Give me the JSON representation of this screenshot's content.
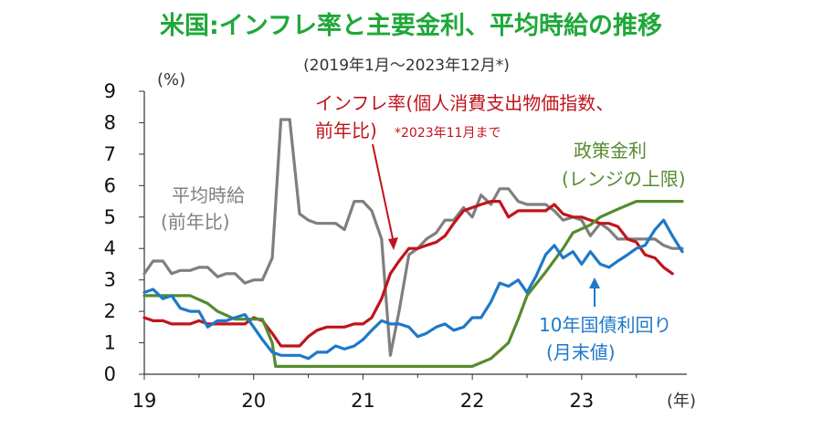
{
  "chart_data": {
    "type": "line",
    "title": "米国:インフレ率と主要金利、平均時給の推移",
    "subtitle": "(2019年1月〜2023年12月*)",
    "y_unit_label": "(%)",
    "x_unit_label": "(年)",
    "xlim": [
      2019.0,
      2023.92
    ],
    "ylim": [
      0,
      9
    ],
    "y_ticks": [
      "0",
      "1",
      "2",
      "3",
      "4",
      "5",
      "6",
      "7",
      "8",
      "9"
    ],
    "x_ticks": [
      {
        "value": 2019,
        "label": "19"
      },
      {
        "value": 2020,
        "label": "20"
      },
      {
        "value": 2021,
        "label": "21"
      },
      {
        "value": 2022,
        "label": "22"
      },
      {
        "value": 2023,
        "label": "23"
      }
    ],
    "series": [
      {
        "key": "wages",
        "color": "#7f7f7f",
        "values": [
          [
            2019.0,
            3.2
          ],
          [
            2019.08,
            3.6
          ],
          [
            2019.17,
            3.6
          ],
          [
            2019.25,
            3.2
          ],
          [
            2019.33,
            3.3
          ],
          [
            2019.42,
            3.3
          ],
          [
            2019.5,
            3.4
          ],
          [
            2019.58,
            3.4
          ],
          [
            2019.67,
            3.1
          ],
          [
            2019.75,
            3.2
          ],
          [
            2019.83,
            3.2
          ],
          [
            2019.92,
            2.9
          ],
          [
            2020.0,
            3.0
          ],
          [
            2020.08,
            3.0
          ],
          [
            2020.17,
            3.7
          ],
          [
            2020.25,
            8.1
          ],
          [
            2020.33,
            8.1
          ],
          [
            2020.42,
            5.1
          ],
          [
            2020.5,
            4.9
          ],
          [
            2020.58,
            4.8
          ],
          [
            2020.67,
            4.8
          ],
          [
            2020.75,
            4.8
          ],
          [
            2020.83,
            4.6
          ],
          [
            2020.92,
            5.5
          ],
          [
            2021.0,
            5.5
          ],
          [
            2021.08,
            5.2
          ],
          [
            2021.17,
            4.3
          ],
          [
            2021.25,
            0.6
          ],
          [
            2021.33,
            2.0
          ],
          [
            2021.42,
            3.8
          ],
          [
            2021.5,
            4.0
          ],
          [
            2021.58,
            4.3
          ],
          [
            2021.67,
            4.5
          ],
          [
            2021.75,
            4.9
          ],
          [
            2021.83,
            4.9
          ],
          [
            2021.92,
            5.3
          ],
          [
            2022.0,
            5.0
          ],
          [
            2022.08,
            5.7
          ],
          [
            2022.17,
            5.4
          ],
          [
            2022.25,
            5.9
          ],
          [
            2022.33,
            5.9
          ],
          [
            2022.42,
            5.5
          ],
          [
            2022.5,
            5.4
          ],
          [
            2022.58,
            5.4
          ],
          [
            2022.67,
            5.4
          ],
          [
            2022.75,
            5.2
          ],
          [
            2022.83,
            4.9
          ],
          [
            2022.92,
            5.0
          ],
          [
            2023.0,
            4.9
          ],
          [
            2023.08,
            4.4
          ],
          [
            2023.17,
            4.8
          ],
          [
            2023.25,
            4.6
          ],
          [
            2023.33,
            4.3
          ],
          [
            2023.42,
            4.3
          ],
          [
            2023.5,
            4.3
          ],
          [
            2023.58,
            4.3
          ],
          [
            2023.67,
            4.3
          ],
          [
            2023.75,
            4.1
          ],
          [
            2023.83,
            4.0
          ],
          [
            2023.92,
            4.0
          ]
        ]
      },
      {
        "key": "inflation",
        "color": "#c0141c",
        "values": [
          [
            2019.0,
            1.8
          ],
          [
            2019.08,
            1.7
          ],
          [
            2019.17,
            1.7
          ],
          [
            2019.25,
            1.6
          ],
          [
            2019.33,
            1.6
          ],
          [
            2019.42,
            1.6
          ],
          [
            2019.5,
            1.7
          ],
          [
            2019.58,
            1.6
          ],
          [
            2019.67,
            1.6
          ],
          [
            2019.75,
            1.6
          ],
          [
            2019.83,
            1.6
          ],
          [
            2019.92,
            1.6
          ],
          [
            2020.0,
            1.8
          ],
          [
            2020.08,
            1.7
          ],
          [
            2020.17,
            1.3
          ],
          [
            2020.25,
            0.9
          ],
          [
            2020.33,
            0.9
          ],
          [
            2020.42,
            0.9
          ],
          [
            2020.5,
            1.2
          ],
          [
            2020.58,
            1.4
          ],
          [
            2020.67,
            1.5
          ],
          [
            2020.75,
            1.5
          ],
          [
            2020.83,
            1.5
          ],
          [
            2020.92,
            1.6
          ],
          [
            2021.0,
            1.6
          ],
          [
            2021.08,
            1.8
          ],
          [
            2021.17,
            2.4
          ],
          [
            2021.25,
            3.2
          ],
          [
            2021.33,
            3.6
          ],
          [
            2021.42,
            4.0
          ],
          [
            2021.5,
            4.0
          ],
          [
            2021.58,
            4.1
          ],
          [
            2021.67,
            4.2
          ],
          [
            2021.75,
            4.4
          ],
          [
            2021.83,
            4.8
          ],
          [
            2021.92,
            5.2
          ],
          [
            2022.0,
            5.3
          ],
          [
            2022.08,
            5.4
          ],
          [
            2022.17,
            5.5
          ],
          [
            2022.25,
            5.5
          ],
          [
            2022.33,
            5.0
          ],
          [
            2022.42,
            5.2
          ],
          [
            2022.5,
            5.2
          ],
          [
            2022.58,
            5.2
          ],
          [
            2022.67,
            5.2
          ],
          [
            2022.75,
            5.4
          ],
          [
            2022.83,
            5.1
          ],
          [
            2022.92,
            5.0
          ],
          [
            2023.0,
            5.0
          ],
          [
            2023.08,
            4.9
          ],
          [
            2023.17,
            4.8
          ],
          [
            2023.25,
            4.8
          ],
          [
            2023.33,
            4.7
          ],
          [
            2023.42,
            4.3
          ],
          [
            2023.5,
            4.2
          ],
          [
            2023.58,
            3.8
          ],
          [
            2023.67,
            3.7
          ],
          [
            2023.75,
            3.4
          ],
          [
            2023.83,
            3.2
          ]
        ]
      },
      {
        "key": "policy_rate",
        "color": "#558b2f",
        "values": [
          [
            2019.0,
            2.5
          ],
          [
            2019.42,
            2.5
          ],
          [
            2019.58,
            2.25
          ],
          [
            2019.67,
            2.0
          ],
          [
            2019.83,
            1.75
          ],
          [
            2020.08,
            1.75
          ],
          [
            2020.17,
            1.0
          ],
          [
            2020.2,
            0.25
          ],
          [
            2022.0,
            0.25
          ],
          [
            2022.17,
            0.5
          ],
          [
            2022.33,
            1.0
          ],
          [
            2022.42,
            1.75
          ],
          [
            2022.5,
            2.5
          ],
          [
            2022.67,
            3.25
          ],
          [
            2022.83,
            4.0
          ],
          [
            2022.92,
            4.5
          ],
          [
            2023.08,
            4.75
          ],
          [
            2023.17,
            5.0
          ],
          [
            2023.33,
            5.25
          ],
          [
            2023.5,
            5.5
          ],
          [
            2023.92,
            5.5
          ]
        ]
      },
      {
        "key": "treasury10y",
        "color": "#1f78c8",
        "values": [
          [
            2019.0,
            2.6
          ],
          [
            2019.08,
            2.7
          ],
          [
            2019.17,
            2.4
          ],
          [
            2019.25,
            2.5
          ],
          [
            2019.33,
            2.1
          ],
          [
            2019.42,
            2.0
          ],
          [
            2019.5,
            2.0
          ],
          [
            2019.58,
            1.5
          ],
          [
            2019.67,
            1.7
          ],
          [
            2019.75,
            1.7
          ],
          [
            2019.83,
            1.8
          ],
          [
            2019.92,
            1.9
          ],
          [
            2020.0,
            1.5
          ],
          [
            2020.08,
            1.1
          ],
          [
            2020.17,
            0.7
          ],
          [
            2020.25,
            0.6
          ],
          [
            2020.33,
            0.6
          ],
          [
            2020.42,
            0.6
          ],
          [
            2020.5,
            0.5
          ],
          [
            2020.58,
            0.7
          ],
          [
            2020.67,
            0.7
          ],
          [
            2020.75,
            0.9
          ],
          [
            2020.83,
            0.8
          ],
          [
            2020.92,
            0.9
          ],
          [
            2021.0,
            1.1
          ],
          [
            2021.08,
            1.4
          ],
          [
            2021.17,
            1.7
          ],
          [
            2021.25,
            1.6
          ],
          [
            2021.33,
            1.6
          ],
          [
            2021.42,
            1.5
          ],
          [
            2021.5,
            1.2
          ],
          [
            2021.58,
            1.3
          ],
          [
            2021.67,
            1.5
          ],
          [
            2021.75,
            1.6
          ],
          [
            2021.83,
            1.4
          ],
          [
            2021.92,
            1.5
          ],
          [
            2022.0,
            1.8
          ],
          [
            2022.08,
            1.8
          ],
          [
            2022.17,
            2.3
          ],
          [
            2022.25,
            2.9
          ],
          [
            2022.33,
            2.8
          ],
          [
            2022.42,
            3.0
          ],
          [
            2022.5,
            2.6
          ],
          [
            2022.58,
            3.1
          ],
          [
            2022.67,
            3.8
          ],
          [
            2022.75,
            4.1
          ],
          [
            2022.83,
            3.7
          ],
          [
            2022.92,
            3.9
          ],
          [
            2023.0,
            3.5
          ],
          [
            2023.08,
            3.9
          ],
          [
            2023.17,
            3.5
          ],
          [
            2023.25,
            3.4
          ],
          [
            2023.33,
            3.6
          ],
          [
            2023.42,
            3.8
          ],
          [
            2023.5,
            4.0
          ],
          [
            2023.58,
            4.1
          ],
          [
            2023.67,
            4.6
          ],
          [
            2023.75,
            4.9
          ],
          [
            2023.83,
            4.4
          ],
          [
            2023.92,
            3.9
          ]
        ]
      }
    ],
    "annotations": {
      "wages_label_1": "平均時給",
      "wages_label_2": "(前年比)",
      "inflation_label_1": "インフレ率(個人消費支出物価指数、",
      "inflation_label_2": "前年比)",
      "inflation_note": "*2023年11月まで",
      "policy_label_1": "政策金利",
      "policy_label_2": "(レンジの上限)",
      "treasury_label_1": "10年国債利回り",
      "treasury_label_2": "(月末値)"
    },
    "grid": false,
    "legend": "none (direct labels)"
  }
}
